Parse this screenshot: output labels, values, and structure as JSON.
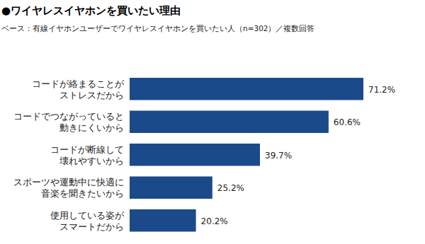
{
  "chart_data": {
    "type": "bar",
    "orientation": "horizontal",
    "title": "●ワイヤレスイヤホンを買いたい理由",
    "subtitle": "ベース：有線イヤホンユーザーでワイヤレスイヤホンを買いたい人（n=302）／複数回答",
    "categories": [
      "コードが絡まることが\nストレスだから",
      "コードでつながっていると\n動きにくいから",
      "コードが断線して\n壊れやすいから",
      "スポーツや運動中に快適に\n音楽を聞きたいから",
      "使用している姿が\nスマートだから"
    ],
    "values": [
      71.2,
      60.6,
      39.7,
      25.2,
      20.2
    ],
    "value_labels": [
      "71.2%",
      "60.6%",
      "39.7%",
      "25.2%",
      "20.2%"
    ],
    "color": "#1b4a8a",
    "data_labels": true,
    "tick_labels": false,
    "grid": false
  }
}
